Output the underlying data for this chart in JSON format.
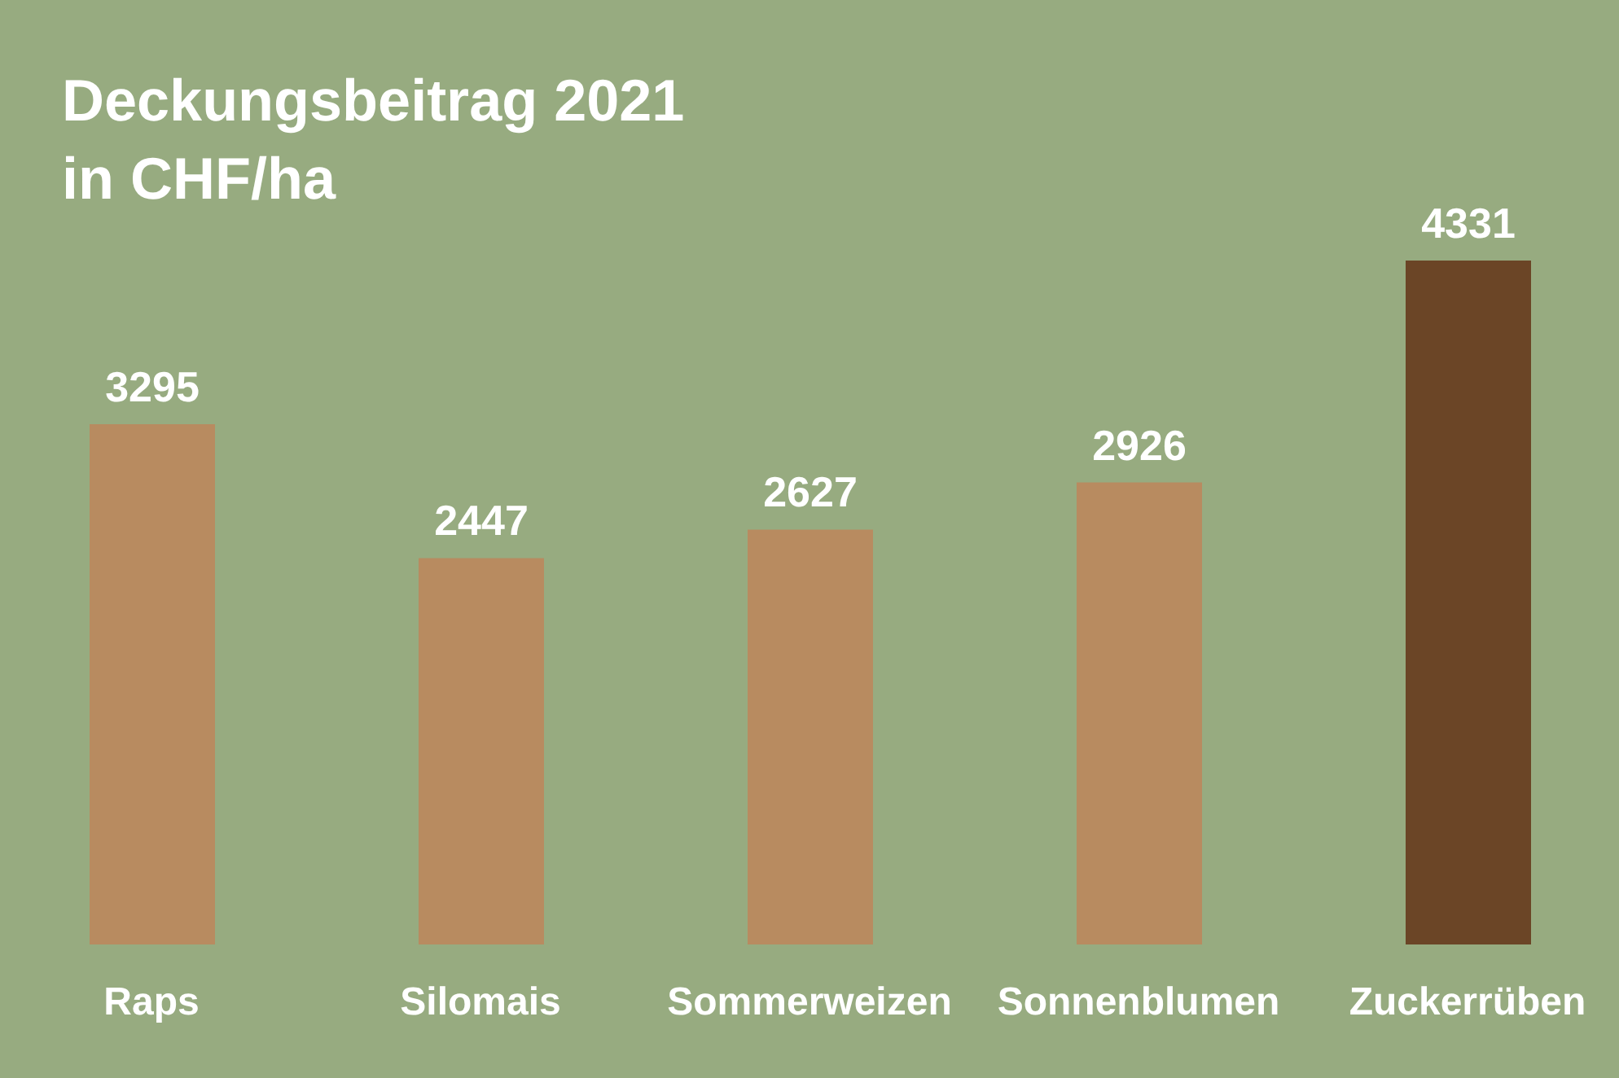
{
  "chart_data": {
    "type": "bar",
    "title": "Deckungsbeitrag 2021",
    "subtitle": "in CHF/ha",
    "categories": [
      "Raps",
      "Silomais",
      "Sommerweizen",
      "Sonnenblumen",
      "Zuckerrüben"
    ],
    "values": [
      3295,
      2447,
      2627,
      2926,
      4331
    ],
    "colors": [
      "#b88b60",
      "#b88b60",
      "#b88b60",
      "#b88b60",
      "#6b4526"
    ],
    "data_labels": true
  }
}
